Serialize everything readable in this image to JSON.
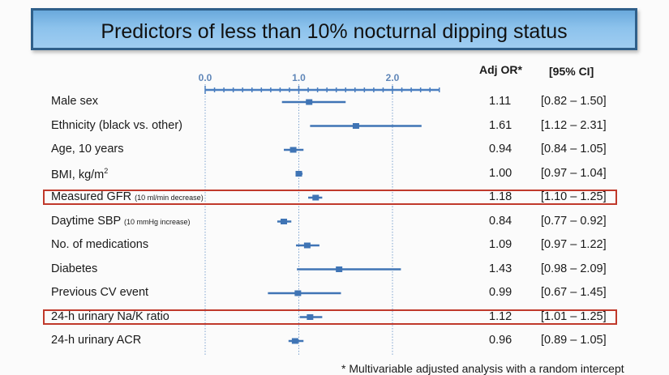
{
  "slide": {
    "title": "Predictors of less than 10% nocturnal dipping status",
    "col_or": "Adj OR*",
    "col_ci": "[95% CI]",
    "footnote": "* Multivariable adjusted analysis with a random intercept"
  },
  "chart_data": {
    "type": "forest",
    "title": "Predictors of less than 10% nocturnal dipping status",
    "x_ticks": [
      "0.0",
      "1.0",
      "2.0"
    ],
    "xlim": [
      0,
      2.5
    ],
    "reference_lines": [
      0,
      1,
      2
    ],
    "rows": [
      {
        "label": "Male sex",
        "note": "",
        "sup": "",
        "or": 1.11,
        "lo": 0.82,
        "hi": 1.5,
        "or_text": "1.11",
        "ci_text": "[0.82 – 1.50]",
        "highlight": false
      },
      {
        "label": "Ethnicity (black vs. other)",
        "note": "",
        "sup": "",
        "or": 1.61,
        "lo": 1.12,
        "hi": 2.31,
        "or_text": "1.61",
        "ci_text": "[1.12 – 2.31]",
        "highlight": false
      },
      {
        "label": "Age, 10 years",
        "note": "",
        "sup": "",
        "or": 0.94,
        "lo": 0.84,
        "hi": 1.05,
        "or_text": "0.94",
        "ci_text": "[0.84 – 1.05]",
        "highlight": false
      },
      {
        "label": "BMI, kg/m",
        "note": "",
        "sup": "2",
        "or": 1.0,
        "lo": 0.97,
        "hi": 1.04,
        "or_text": "1.00",
        "ci_text": "[0.97 – 1.04]",
        "highlight": false
      },
      {
        "label": "Measured GFR ",
        "note": "(10 ml/min decrease)",
        "sup": "",
        "or": 1.18,
        "lo": 1.1,
        "hi": 1.25,
        "or_text": "1.18",
        "ci_text": "[1.10 – 1.25]",
        "highlight": true
      },
      {
        "label": "Daytime SBP ",
        "note": "(10 mmHg increase)",
        "sup": "",
        "or": 0.84,
        "lo": 0.77,
        "hi": 0.92,
        "or_text": "0.84",
        "ci_text": "[0.77 – 0.92]",
        "highlight": false
      },
      {
        "label": "No. of medications",
        "note": "",
        "sup": "",
        "or": 1.09,
        "lo": 0.97,
        "hi": 1.22,
        "or_text": "1.09",
        "ci_text": "[0.97 – 1.22]",
        "highlight": false
      },
      {
        "label": "Diabetes",
        "note": "",
        "sup": "",
        "or": 1.43,
        "lo": 0.98,
        "hi": 2.09,
        "or_text": "1.43",
        "ci_text": "[0.98 – 2.09]",
        "highlight": false
      },
      {
        "label": "Previous CV event",
        "note": "",
        "sup": "",
        "or": 0.99,
        "lo": 0.67,
        "hi": 1.45,
        "or_text": "0.99",
        "ci_text": "[0.67 – 1.45]",
        "highlight": false
      },
      {
        "label": "24-h urinary Na/K ratio",
        "note": "",
        "sup": "",
        "or": 1.12,
        "lo": 1.01,
        "hi": 1.25,
        "or_text": "1.12",
        "ci_text": "[1.01 – 1.25]",
        "highlight": true
      },
      {
        "label": "24-h urinary ACR",
        "note": "",
        "sup": "",
        "or": 0.96,
        "lo": 0.89,
        "hi": 1.05,
        "or_text": "0.96",
        "ci_text": "[0.89 – 1.05]",
        "highlight": false
      }
    ],
    "colors": {
      "marker": "#3f74b5",
      "axis": "#4a7ec0",
      "ticklabel": "#5f86b8",
      "highlight": "#c0392b"
    }
  }
}
